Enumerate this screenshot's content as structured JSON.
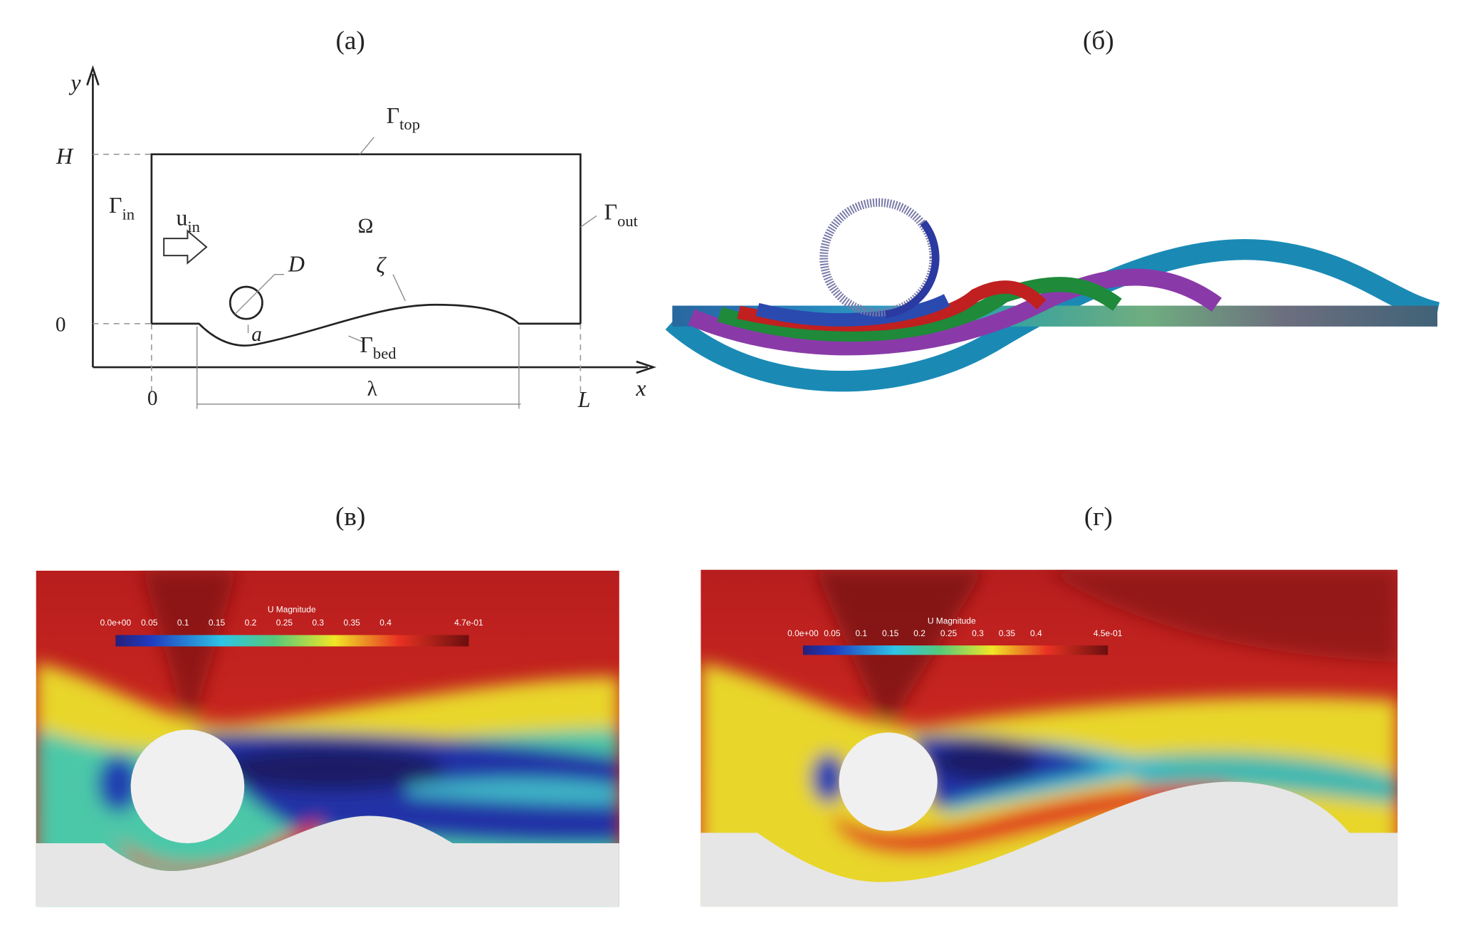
{
  "panel_labels": [
    "(a)",
    "(б)",
    "(в)",
    "(г)"
  ],
  "diagram": {
    "axis_y": "y",
    "axis_x": "x",
    "H": "H",
    "zero_y": "0",
    "zero_x": "0",
    "L": "L",
    "lambda": "λ",
    "Omega": "Ω",
    "D": "D",
    "zeta": "ζ",
    "a": "a",
    "u_in": {
      "symbol": "u",
      "sub": "in"
    },
    "gamma_in": {
      "symbol": "Γ",
      "sub": "in"
    },
    "gamma_top": {
      "symbol": "Γ",
      "sub": "top"
    },
    "gamma_out": {
      "symbol": "Γ",
      "sub": "out"
    },
    "gamma_bed": {
      "symbol": "Γ",
      "sub": "bed"
    }
  },
  "colorbars": [
    {
      "title": "U Magnitude",
      "ticks": [
        "0.0e+00",
        "0.05",
        "0.1",
        "0.15",
        "0.2",
        "0.25",
        "0.3",
        "0.35",
        "0.4",
        "4.7e-01"
      ]
    },
    {
      "title": "U Magnitude",
      "ticks": [
        "0.0e+00",
        "0.05",
        "0.1",
        "0.15",
        "0.2",
        "0.25",
        "0.3",
        "0.35",
        "0.4",
        "4.5e-01"
      ]
    }
  ]
}
